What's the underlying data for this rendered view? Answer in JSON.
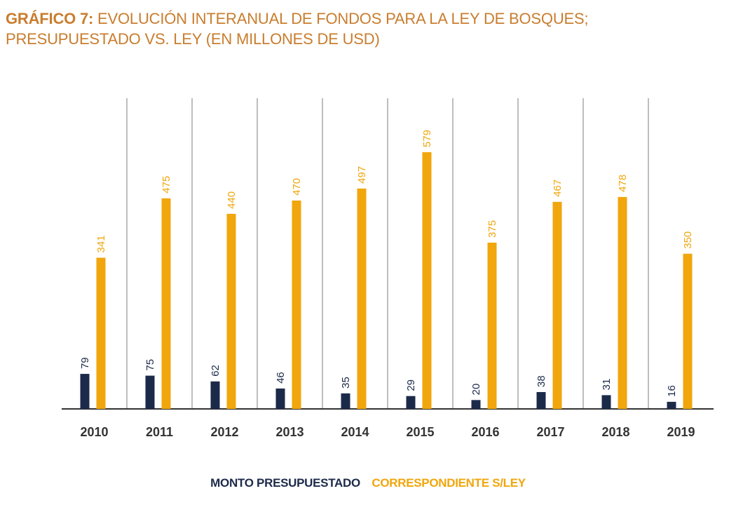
{
  "title": {
    "label": "GRÁFICO 7:",
    "line1": "EVOLUCIÓN INTERANUAL DE FONDOS PARA LA LEY DE BOSQUES;",
    "line2": "PRESUPUESTADO VS. LEY (EN MILLONES DE USD)"
  },
  "legend": {
    "series1": "MONTO PRESUPUESTADO",
    "series2": "CORRESPONDIENTE S/LEY"
  },
  "colors": {
    "title": "#c97d2e",
    "series1": "#1c2a4a",
    "series2": "#f0a60c",
    "grid": "#a8a8a8",
    "axis": "#333333"
  },
  "chart_data": {
    "type": "bar",
    "title": "GRÁFICO 7: EVOLUCIÓN INTERANUAL DE FONDOS PARA LA LEY DE BOSQUES; PRESUPUESTADO VS. LEY (EN MILLONES DE USD)",
    "categories": [
      "2010",
      "2011",
      "2012",
      "2013",
      "2014",
      "2015",
      "2016",
      "2017",
      "2018",
      "2019"
    ],
    "series": [
      {
        "name": "MONTO PRESUPUESTADO",
        "values": [
          79,
          75,
          62,
          46,
          35,
          29,
          20,
          38,
          31,
          16
        ]
      },
      {
        "name": "CORRESPONDIENTE S/LEY",
        "values": [
          341,
          475,
          440,
          470,
          497,
          579,
          375,
          467,
          478,
          350
        ]
      }
    ],
    "xlabel": "",
    "ylabel": "",
    "ylim": [
      0,
      579
    ],
    "grid": "vertical separators",
    "legend_position": "bottom-center",
    "data_labels": "rotated, above bars"
  }
}
